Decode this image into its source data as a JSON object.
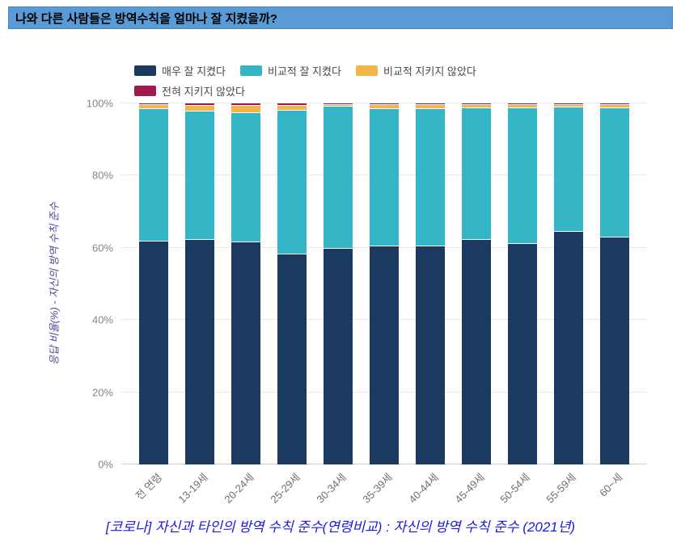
{
  "title_bar": {
    "text": "나와 다른 사람들은 방역수칙을 얼마나 잘 지켰을까?",
    "background_color": "#5b9bd5"
  },
  "chart_data": {
    "type": "bar",
    "stacked": true,
    "title": "",
    "xlabel": "",
    "ylabel": "응답 비율(%) - 자신의 방역 수칙 준수",
    "ylim": [
      0,
      100
    ],
    "grid": true,
    "legend_position": "top",
    "yticks": [
      {
        "value": 0,
        "label": "0%"
      },
      {
        "value": 20,
        "label": "20%"
      },
      {
        "value": 40,
        "label": "40%"
      },
      {
        "value": 60,
        "label": "60%"
      },
      {
        "value": 80,
        "label": "80%"
      },
      {
        "value": 100,
        "label": "100%"
      }
    ],
    "categories": [
      "전 연령",
      "13-19세",
      "20-24세",
      "25-29세",
      "30-34세",
      "35-39세",
      "40-44세",
      "45-49세",
      "50-54세",
      "55-59세",
      "60~세"
    ],
    "series": [
      {
        "name": "매우 잘 지켰다",
        "color": "#1b3a5f",
        "values": [
          62.0,
          62.5,
          61.8,
          58.3,
          60.0,
          60.7,
          60.7,
          62.5,
          61.4,
          64.7,
          63.2
        ]
      },
      {
        "name": "비교적 잘 지켰다",
        "color": "#35b6c7",
        "values": [
          36.6,
          35.4,
          35.8,
          40.0,
          39.3,
          37.9,
          38.0,
          36.3,
          37.4,
          34.3,
          35.6
        ]
      },
      {
        "name": "비교적 지키지 않았다",
        "color": "#f2b644",
        "values": [
          1.1,
          1.7,
          1.9,
          1.3,
          0.5,
          1.1,
          1.1,
          0.9,
          1.0,
          0.8,
          0.9
        ]
      },
      {
        "name": "전혀 지키지 않았다",
        "color": "#a01a4d",
        "values": [
          0.3,
          0.4,
          0.5,
          0.4,
          0.2,
          0.3,
          0.2,
          0.3,
          0.2,
          0.2,
          0.3
        ]
      }
    ]
  },
  "caption": {
    "text": "[코로나] 자신과 타인의 방역 수칙 준수(연령비교) : 자신의 방역 수칙 준수 (2021년)"
  }
}
